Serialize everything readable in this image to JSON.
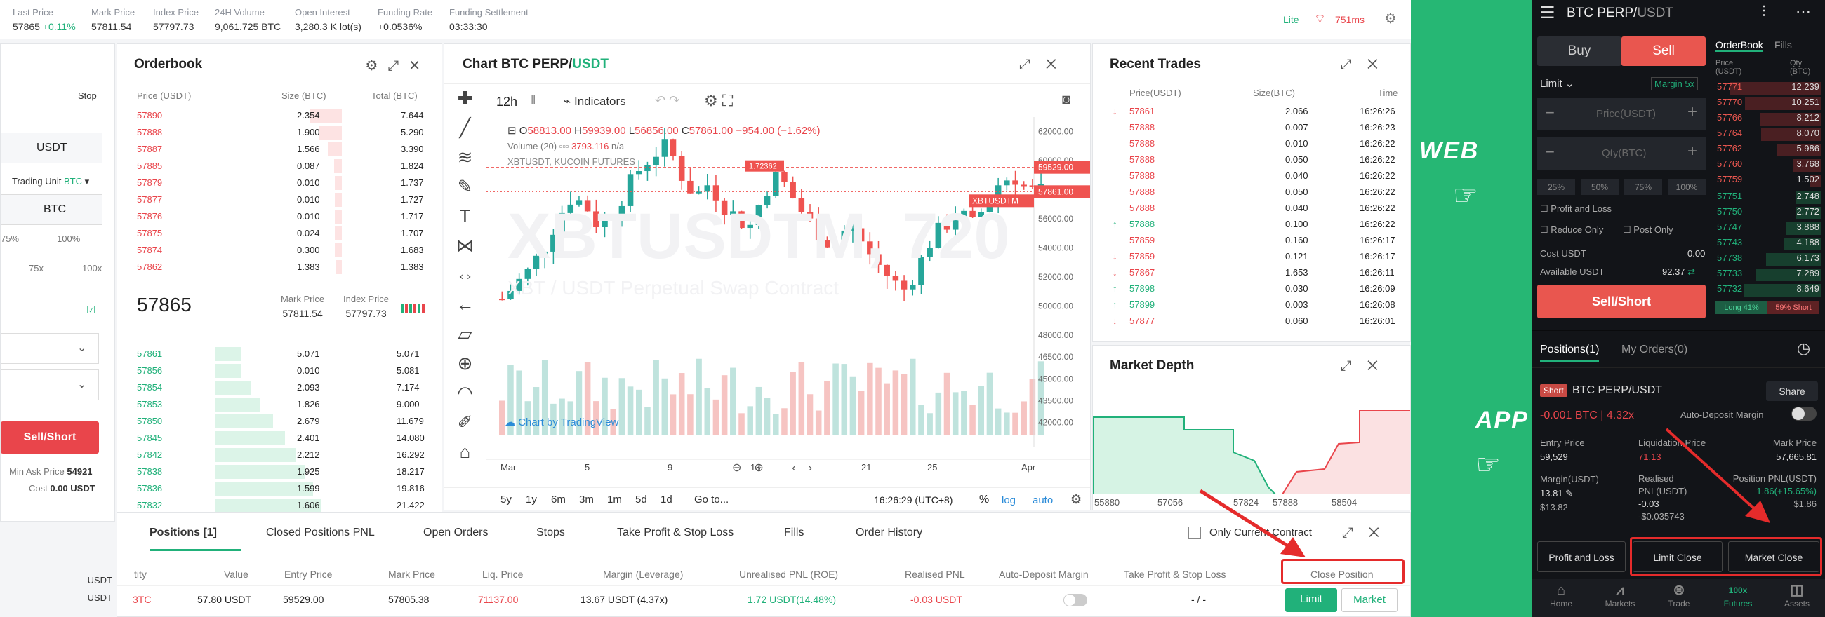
{
  "ticker": [
    {
      "label": "Last Price",
      "value": "57865",
      "change": "+0.11%"
    },
    {
      "label": "Mark Price",
      "value": "57811.54"
    },
    {
      "label": "Index Price",
      "value": "57797.73"
    },
    {
      "label": "24H Volume",
      "value": "9,061.725 BTC"
    },
    {
      "label": "Open Interest",
      "value": "3,280.3 K lot(s)"
    },
    {
      "label": "Funding Rate",
      "value": "+0.0536%"
    },
    {
      "label": "Funding Settlement",
      "value": "03:33:30"
    }
  ],
  "ticker_right": {
    "mode": "Lite",
    "latency": "751ms"
  },
  "left_form": {
    "stop": "Stop",
    "currency": "USDT",
    "trading_unit_label": "Trading Unit",
    "trading_unit": "BTC",
    "btc": "BTC",
    "pct_a": "75%",
    "pct_b": "100%",
    "lev_a": "75x",
    "lev_b": "100x",
    "sell_btn": "Sell/Short",
    "min_ask_label": "Min Ask Price",
    "min_ask": "54921",
    "cost_label": "Cost",
    "cost": "0.00 USDT",
    "usdt1": "USDT",
    "usdt2": "USDT"
  },
  "orderbook": {
    "title": "Orderbook",
    "col_price": "Price (USDT)",
    "col_size": "Size (BTC)",
    "col_total": "Total (BTC)",
    "asks": [
      [
        "57890",
        "2.354",
        "7.644"
      ],
      [
        "57888",
        "1.900",
        "5.290"
      ],
      [
        "57887",
        "1.566",
        "3.390"
      ],
      [
        "57885",
        "0.087",
        "1.824"
      ],
      [
        "57879",
        "0.010",
        "1.737"
      ],
      [
        "57877",
        "0.010",
        "1.727"
      ],
      [
        "57876",
        "0.010",
        "1.717"
      ],
      [
        "57875",
        "0.024",
        "1.707"
      ],
      [
        "57874",
        "0.300",
        "1.683"
      ],
      [
        "57862",
        "1.383",
        "1.383"
      ]
    ],
    "last": "57865",
    "mark_label": "Mark Price",
    "mark": "57811.54",
    "index_label": "Index Price",
    "index": "57797.73",
    "bids": [
      [
        "57861",
        "5.071",
        "5.071"
      ],
      [
        "57856",
        "0.010",
        "5.081"
      ],
      [
        "57854",
        "2.093",
        "7.174"
      ],
      [
        "57853",
        "1.826",
        "9.000"
      ],
      [
        "57850",
        "2.679",
        "11.679"
      ],
      [
        "57845",
        "2.401",
        "14.080"
      ],
      [
        "57842",
        "2.212",
        "16.292"
      ],
      [
        "57838",
        "1.925",
        "18.217"
      ],
      [
        "57836",
        "1.599",
        "19.816"
      ],
      [
        "57832",
        "1.606",
        "21.422"
      ]
    ]
  },
  "chart": {
    "title_a": "Chart BTC PERP/",
    "title_b": "USDT",
    "interval": "12h",
    "indicators": "Indicators",
    "ohlc": {
      "o": "58813.00",
      "h": "59939.00",
      "l": "56856.00",
      "c": "57861.00",
      "chg": "−954.00 (−1.62%)"
    },
    "volume_label": "Volume (20)",
    "volume_val": "3793.116",
    "volume_na": "n/a",
    "symbol_label": "XBTUSDT, KUCOIN FUTURES",
    "watermark": "XBTUSDTM, 720",
    "watermark2": "XBT / USDT Perpetual Swap Contract",
    "price_tag1": "59529.00",
    "price_tag2": "57861.00",
    "sym_tag": "XBTUSDTM",
    "pos_tag": "1.72362",
    "yticks": [
      "62000.00",
      "60000.00",
      "58000.00",
      "56000.00",
      "54000.00",
      "52000.00",
      "50000.00",
      "48000.00",
      "46500.00",
      "45000.00",
      "43500.00",
      "42000.00"
    ],
    "xticks": [
      "Mar",
      "5",
      "9",
      "13",
      "21",
      "25",
      "Apr"
    ],
    "credit": "Chart by TradingView",
    "ranges": [
      "5y",
      "1y",
      "6m",
      "3m",
      "1m",
      "5d",
      "1d",
      "Go to..."
    ],
    "time": "16:26:29 (UTC+8)",
    "pct": "%",
    "log": "log",
    "auto": "auto"
  },
  "recent_trades": {
    "title": "Recent Trades",
    "col_price": "Price(USDT)",
    "col_size": "Size(BTC)",
    "col_time": "Time",
    "rows": [
      [
        "57861",
        "2.066",
        "16:26:26",
        "d"
      ],
      [
        "57888",
        "0.007",
        "16:26:23",
        ""
      ],
      [
        "57888",
        "0.010",
        "16:26:22",
        ""
      ],
      [
        "57888",
        "0.050",
        "16:26:22",
        ""
      ],
      [
        "57888",
        "0.040",
        "16:26:22",
        ""
      ],
      [
        "57888",
        "0.050",
        "16:26:22",
        ""
      ],
      [
        "57888",
        "0.040",
        "16:26:22",
        ""
      ],
      [
        "57888",
        "0.100",
        "16:26:22",
        "u"
      ],
      [
        "57859",
        "0.160",
        "16:26:17",
        ""
      ],
      [
        "57859",
        "0.121",
        "16:26:17",
        "d"
      ],
      [
        "57867",
        "1.653",
        "16:26:11",
        "d"
      ],
      [
        "57898",
        "0.030",
        "16:26:09",
        "u"
      ],
      [
        "57899",
        "0.003",
        "16:26:08",
        "u"
      ],
      [
        "57877",
        "0.060",
        "16:26:01",
        "d"
      ]
    ]
  },
  "market_depth": {
    "title": "Market Depth",
    "xticks": [
      "55880",
      "57056",
      "57824",
      "57888",
      "58504"
    ]
  },
  "positions": {
    "tabs": [
      "Positions [1]",
      "Closed Positions PNL",
      "Open Orders",
      "Stops",
      "Take Profit & Stop Loss",
      "Fills",
      "Order History"
    ],
    "only_current": "Only Current Contract",
    "cols": [
      "tity",
      "Value",
      "Entry Price",
      "Mark Price",
      "Liq. Price",
      "Margin (Leverage)",
      "Unrealised PNL (ROE)",
      "Realised PNL",
      "Auto-Deposit Margin",
      "Take Profit & Stop Loss",
      "Close Position"
    ],
    "row": {
      "qty": "3TC",
      "value": "57.80 USDT",
      "entry": "59529.00",
      "mark": "57805.38",
      "liq": "71137.00",
      "margin": "13.67 USDT (4.37x)",
      "upnl": "1.72 USDT(14.48%)",
      "rpnl": "-0.03 USDT",
      "tpsl": "- / -"
    },
    "limit_btn": "Limit",
    "market_btn": "Market"
  },
  "labels": {
    "web": "WEB",
    "app": "APP"
  },
  "app": {
    "title_a": "BTC PERP/",
    "title_b": "USDT",
    "tab_orderbook": "OrderBook",
    "tab_fills": "Fills",
    "buy": "Buy",
    "sell": "Sell",
    "limit": "Limit",
    "margin_sel": "Margin 5x",
    "price_ph": "Price(USDT)",
    "qty_ph": "Qty(BTC)",
    "pcts": [
      "25%",
      "50%",
      "75%",
      "100%"
    ],
    "pnl": "Profit and Loss",
    "reduce": "Reduce Only",
    "post": "Post Only",
    "cost_label": "Cost USDT",
    "cost": "0.00",
    "avail_label": "Available USDT",
    "avail": "92.37",
    "sell_btn": "Sell/Short",
    "long": "Long 41%",
    "short": "59% Short",
    "col_price": "Price (USDT)",
    "col_qty": "Qty (BTC)",
    "asks": [
      [
        "57771",
        "12.239"
      ],
      [
        "57770",
        "10.251"
      ],
      [
        "57766",
        "8.212"
      ],
      [
        "57764",
        "8.070"
      ],
      [
        "57762",
        "5.986"
      ],
      [
        "57760",
        "3.768"
      ],
      [
        "57759",
        "1.502"
      ]
    ],
    "bids": [
      [
        "57751",
        "2.748"
      ],
      [
        "57750",
        "2.772"
      ],
      [
        "57747",
        "3.888"
      ],
      [
        "57743",
        "4.188"
      ],
      [
        "57738",
        "6.173"
      ],
      [
        "57733",
        "7.289"
      ],
      [
        "57732",
        "8.649"
      ]
    ],
    "positions_tab": "Positions(1)",
    "orders_tab": "My Orders(0)",
    "short_tag": "Short",
    "pos_symbol": "BTC PERP/USDT",
    "share": "Share",
    "pos_size": "-0.001 BTC | 4.32x",
    "auto_deposit": "Auto-Deposit Margin",
    "entry_label": "Entry Price",
    "entry": "59,529",
    "liq_label": "Liquidation Price",
    "liq": "71,13",
    "mark_label": "Mark Price",
    "mark": "57,665.81",
    "margin_label": "Margin(USDT)",
    "margin": "13.81",
    "margin_sub": "$13.82",
    "realised_label": "Realised PNL(USDT)",
    "realised": "-0.03",
    "realised_sub": "-$0.035743",
    "unreal_label": "Position PNL(USDT)",
    "unreal": "1.86(+15.65%)",
    "unreal_sub": "$1.86",
    "pnl_btn": "Profit and Loss",
    "limit_close": "Limit Close",
    "market_close": "Market Close",
    "nav": [
      "Home",
      "Markets",
      "Trade",
      "Futures",
      "Assets"
    ]
  },
  "colors": {
    "green": "#21b17a",
    "red": "#e9454b",
    "annot": "#e52b2b",
    "app_bg": "#121418",
    "strip": "#26b774"
  }
}
